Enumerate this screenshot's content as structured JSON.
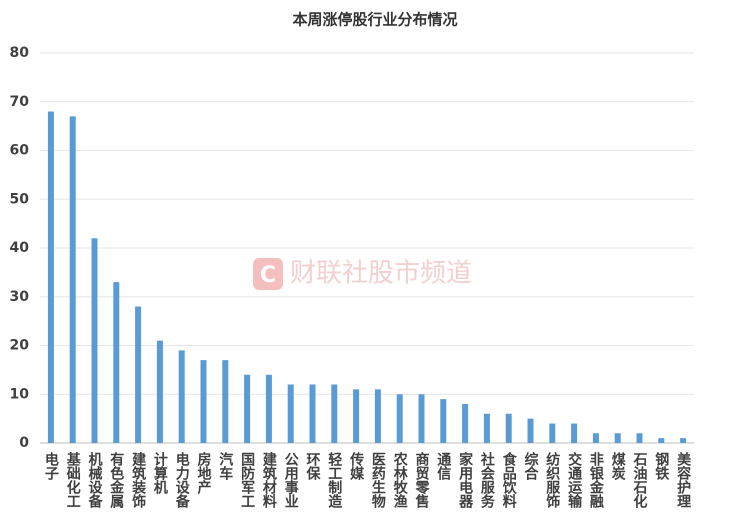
{
  "chart_data": {
    "type": "bar",
    "title": "本周涨停股行业分布情况",
    "watermark": "财联社股市频道",
    "categories": [
      "电子",
      "基础化工",
      "机械设备",
      "有色金属",
      "建筑装饰",
      "计算机",
      "电力设备",
      "房地产",
      "汽车",
      "国防军工",
      "建筑材料",
      "公用事业",
      "环保",
      "轻工制造",
      "传媒",
      "医药生物",
      "农林牧渔",
      "商贸零售",
      "通信",
      "家用电器",
      "社会服务",
      "食品饮料",
      "综合",
      "纺织服饰",
      "交通运输",
      "非银金融",
      "煤炭",
      "石油石化",
      "钢铁",
      "美容护理"
    ],
    "values": [
      68,
      67,
      42,
      33,
      28,
      21,
      19,
      17,
      17,
      14,
      14,
      12,
      12,
      12,
      11,
      11,
      10,
      10,
      9,
      8,
      6,
      6,
      5,
      4,
      4,
      2,
      2,
      2,
      1,
      1
    ],
    "color": "#5b9bd5",
    "ylim": [
      0,
      80
    ],
    "yticks": [
      0,
      10,
      20,
      30,
      40,
      50,
      60,
      70,
      80
    ],
    "grid": true
  }
}
